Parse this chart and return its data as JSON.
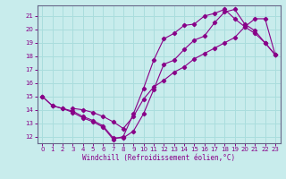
{
  "xlabel": "Windchill (Refroidissement éolien,°C)",
  "background_color": "#c8ecec",
  "line_color": "#880088",
  "grid_color": "#aadddd",
  "spine_color": "#666688",
  "xlim": [
    -0.5,
    23.5
  ],
  "ylim": [
    11.5,
    21.8
  ],
  "yticks": [
    12,
    13,
    14,
    15,
    16,
    17,
    18,
    19,
    20,
    21
  ],
  "xticks": [
    0,
    1,
    2,
    3,
    4,
    5,
    6,
    7,
    8,
    9,
    10,
    11,
    12,
    13,
    14,
    15,
    16,
    17,
    18,
    19,
    20,
    21,
    22,
    23
  ],
  "line1_x": [
    0,
    1,
    2,
    3,
    4,
    5,
    6,
    7,
    8,
    9,
    10,
    11,
    12,
    13,
    14,
    15,
    16,
    17,
    18,
    19,
    20,
    21,
    22,
    23
  ],
  "line1_y": [
    15.0,
    14.3,
    14.1,
    13.9,
    13.5,
    13.2,
    12.8,
    11.9,
    11.9,
    12.4,
    13.7,
    15.5,
    17.4,
    17.7,
    18.5,
    19.2,
    19.5,
    20.5,
    21.3,
    21.5,
    20.4,
    19.9,
    19.0,
    18.1
  ],
  "line2_x": [
    0,
    1,
    2,
    3,
    4,
    5,
    6,
    7,
    8,
    9,
    10,
    11,
    12,
    13,
    14,
    15,
    16,
    17,
    18,
    19,
    20,
    21,
    22,
    23
  ],
  "line2_y": [
    15.0,
    14.3,
    14.1,
    13.8,
    13.4,
    13.1,
    12.7,
    11.8,
    12.0,
    13.7,
    15.6,
    17.7,
    19.3,
    19.7,
    20.3,
    20.4,
    21.0,
    21.2,
    21.5,
    20.8,
    20.2,
    19.7,
    19.0,
    18.1
  ],
  "line3_x": [
    3,
    4,
    5,
    6,
    7,
    8,
    9,
    10,
    11,
    12,
    13,
    14,
    15,
    16,
    17,
    18,
    19,
    20,
    21,
    22,
    23
  ],
  "line3_y": [
    14.1,
    14.0,
    13.8,
    13.5,
    13.1,
    12.6,
    13.5,
    14.8,
    15.7,
    16.2,
    16.8,
    17.2,
    17.8,
    18.2,
    18.6,
    19.0,
    19.4,
    20.2,
    20.8,
    20.8,
    18.1
  ]
}
